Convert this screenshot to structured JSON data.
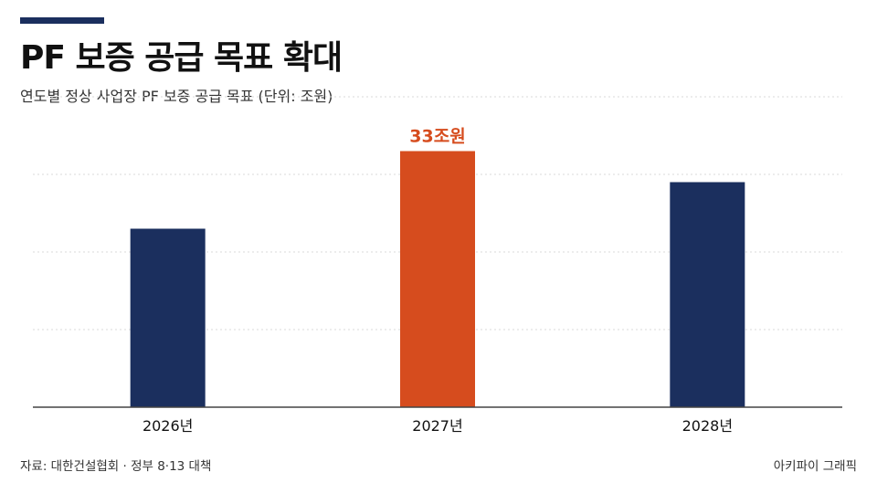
{
  "header": {
    "title": "PF 보증 공급 목표 확대",
    "subtitle": "연도별 정상 사업장 PF 보증 공급 목표 (단위: 조원)"
  },
  "footer": {
    "source": "자료: 대한건설협회 · 정부 8·13 대책",
    "credit": "아키파이 그래픽"
  },
  "colors": {
    "bar_default": "#1b2f5e",
    "bar_highlight": "#d64c1e",
    "gridline": "#d8d8d8",
    "baseline": "#444444"
  },
  "chart_data": {
    "type": "bar",
    "title": "PF 보증 공급 목표 확대",
    "subtitle": "연도별 정상 사업장 PF 보증 공급 목표 (단위: 조원)",
    "categories": [
      "2026년",
      "2027년",
      "2028년"
    ],
    "values": [
      23,
      33,
      29
    ],
    "unit": "조원",
    "highlight_index": 1,
    "data_labels": [
      "",
      "33조원",
      ""
    ],
    "ylim": [
      0,
      40
    ],
    "y_ticks_visible": false,
    "grid": true,
    "legend": "none"
  }
}
